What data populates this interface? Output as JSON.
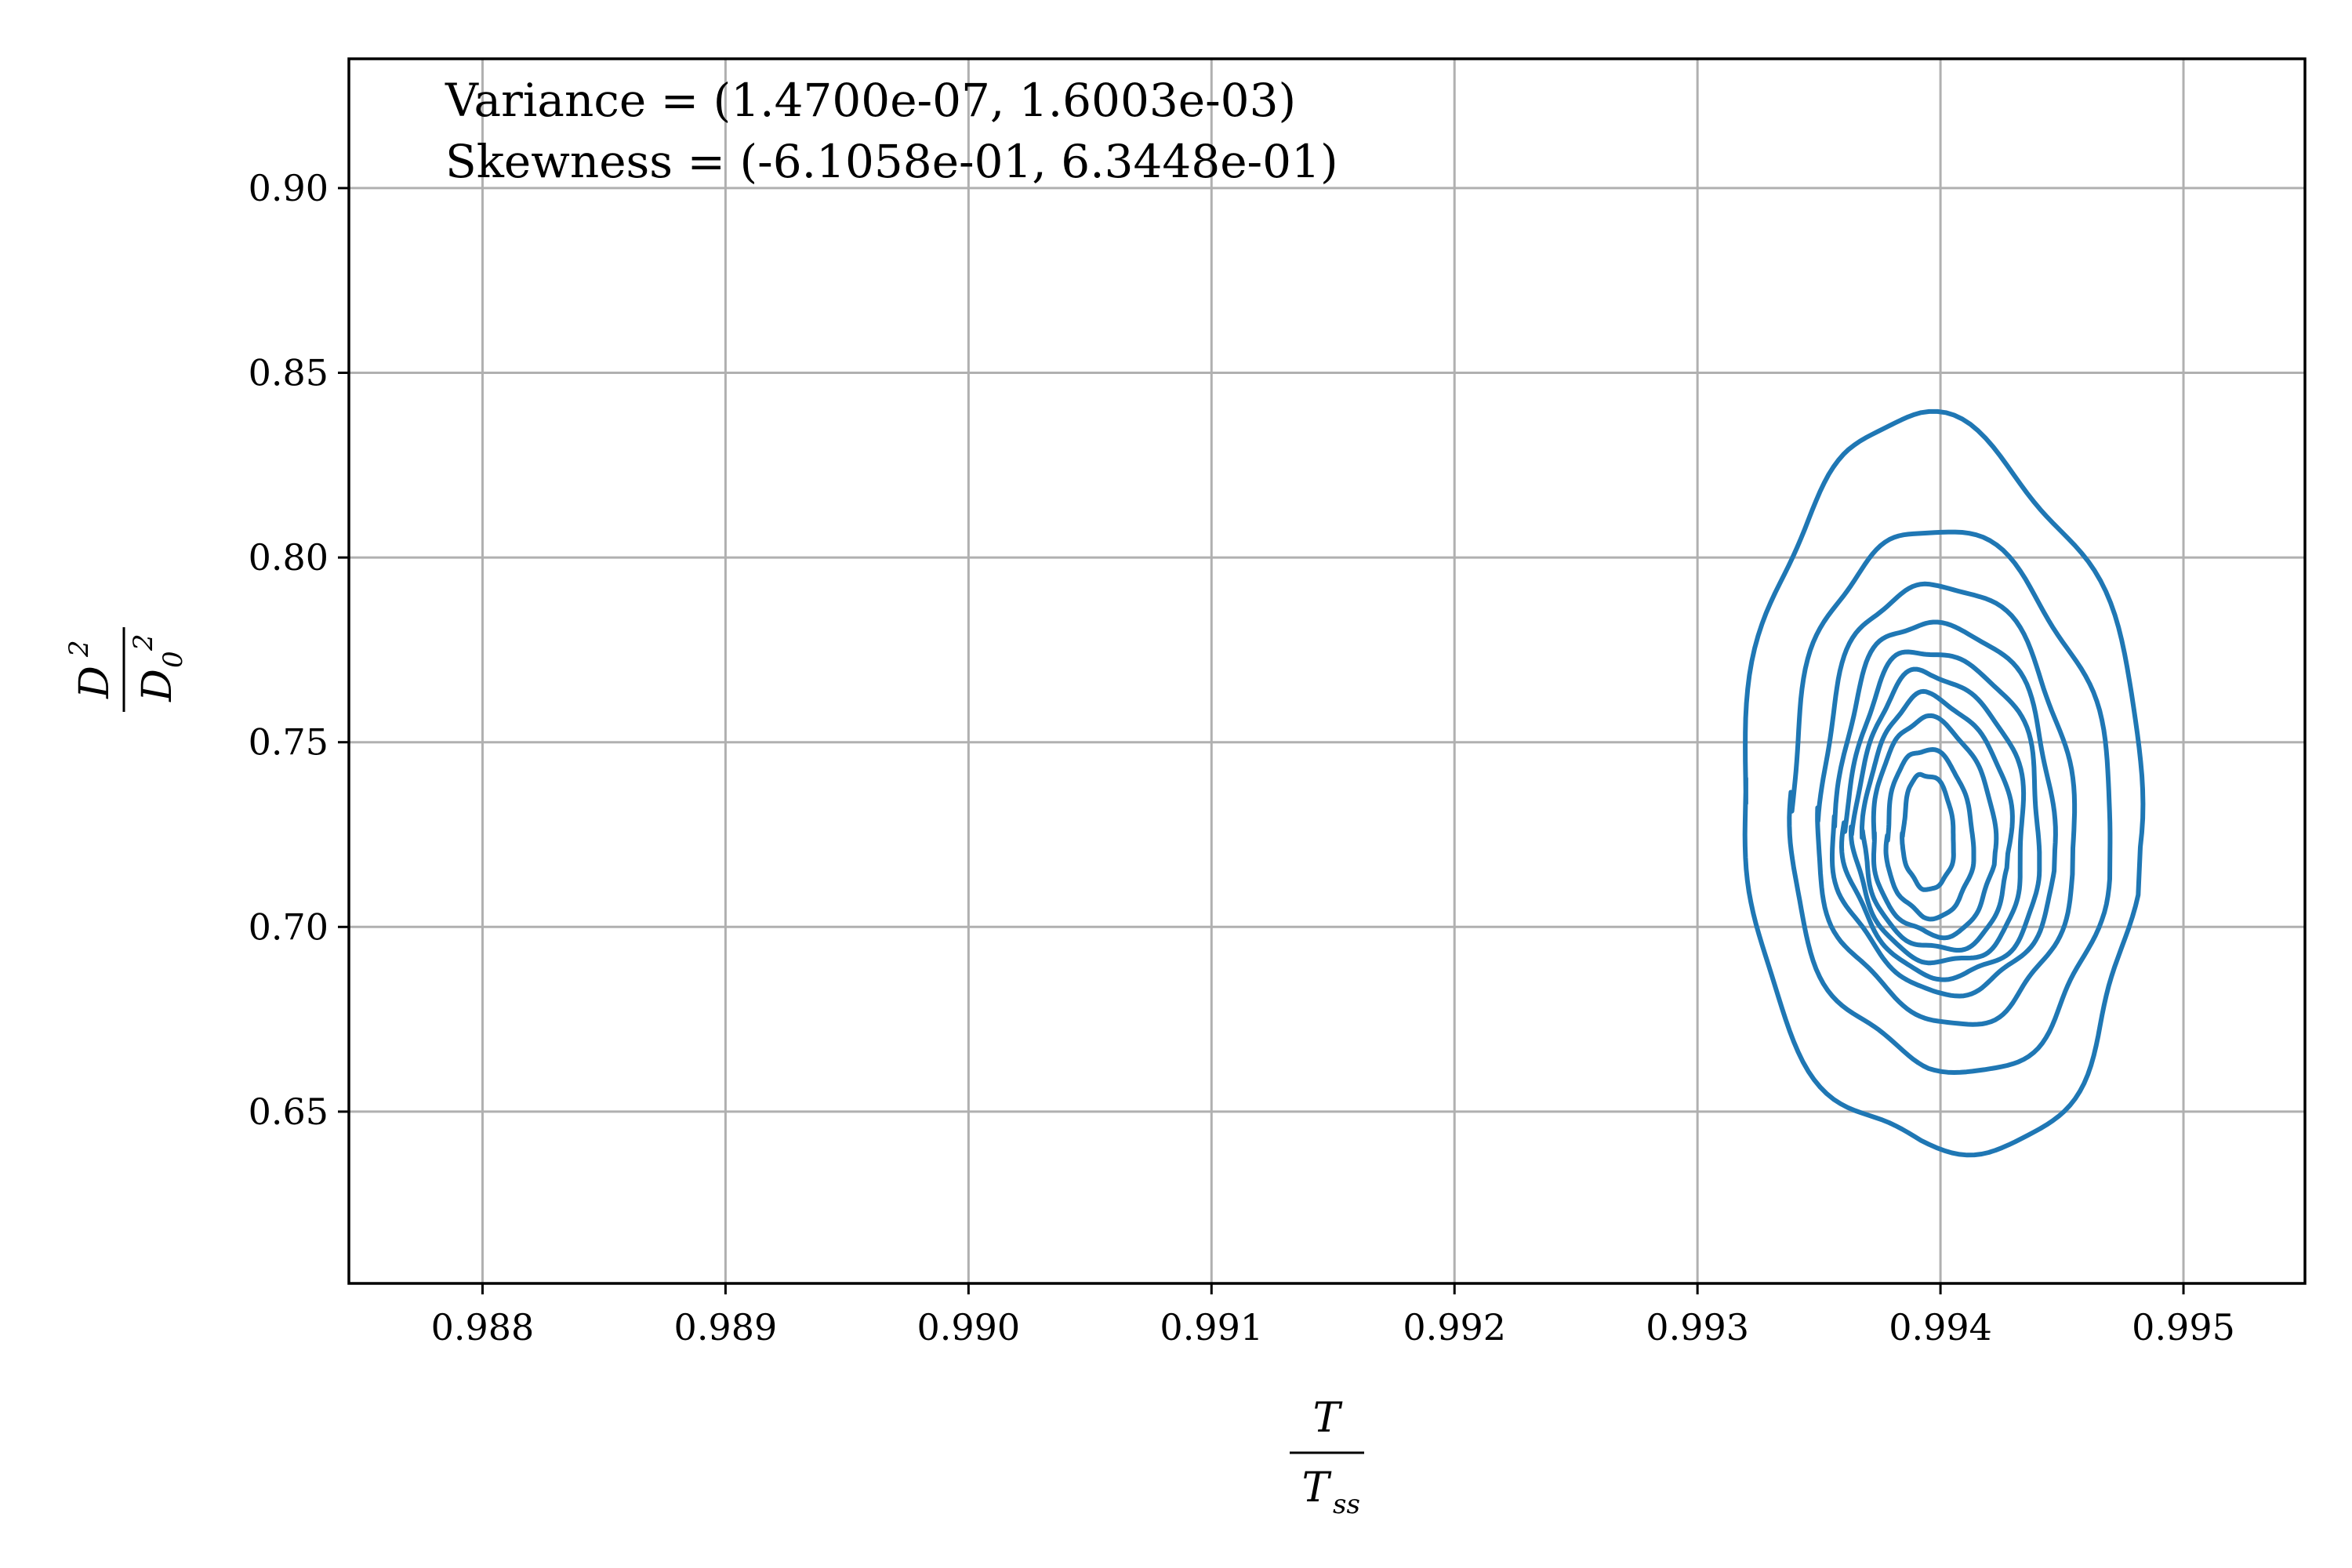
{
  "chart_data": {
    "type": "contour",
    "title": "",
    "xlabel": {
      "numerator": "T",
      "denominator": "T",
      "denominator_sub": "ss"
    },
    "ylabel": {
      "numerator": "D",
      "numerator_sup": "2",
      "denominator": "D",
      "denominator_sub": "0",
      "denominator_sup": "2"
    },
    "xlim": [
      0.98745,
      0.9955
    ],
    "ylim": [
      0.6035,
      0.935
    ],
    "x_ticks": [
      0.988,
      0.989,
      0.99,
      0.991,
      0.992,
      0.993,
      0.994,
      0.995
    ],
    "x_tick_labels": [
      "0.988",
      "0.989",
      "0.990",
      "0.991",
      "0.992",
      "0.993",
      "0.994",
      "0.995"
    ],
    "y_ticks": [
      0.65,
      0.7,
      0.75,
      0.8,
      0.85,
      0.9
    ],
    "y_tick_labels": [
      "0.65",
      "0.70",
      "0.75",
      "0.80",
      "0.85",
      "0.90"
    ],
    "grid": true,
    "annotations": [
      "Variance = (1.4700e-07, 1.6003e-03)",
      "Skewness = (-6.1058e-01, 6.3448e-01)"
    ],
    "series_color": "#1f77b4",
    "contour_levels": [
      {
        "level": 1,
        "cx": 0.99392,
        "cy": 0.7275,
        "rx_left": 0.00077,
        "rx_right": 0.00093,
        "ry_top": 0.109,
        "ry_bottom": 0.0875
      },
      {
        "level": 2,
        "cx": 0.99395,
        "cy": 0.727,
        "rx_left": 0.0006,
        "rx_right": 0.00077,
        "ry_top": 0.08,
        "ry_bottom": 0.065
      },
      {
        "level": 3,
        "cx": 0.99397,
        "cy": 0.725,
        "rx_left": 0.0005,
        "rx_right": 0.0006,
        "ry_top": 0.068,
        "ry_bottom": 0.05
      },
      {
        "level": 4,
        "cx": 0.99397,
        "cy": 0.724,
        "rx_left": 0.00043,
        "rx_right": 0.00052,
        "ry_top": 0.059,
        "ry_bottom": 0.041
      },
      {
        "level": 5,
        "cx": 0.99397,
        "cy": 0.723,
        "rx_left": 0.00038,
        "rx_right": 0.00046,
        "ry_top": 0.052,
        "ry_bottom": 0.036
      },
      {
        "level": 6,
        "cx": 0.99396,
        "cy": 0.7225,
        "rx_left": 0.00033,
        "rx_right": 0.0004,
        "ry_top": 0.046,
        "ry_bottom": 0.032
      },
      {
        "level": 7,
        "cx": 0.99395,
        "cy": 0.722,
        "rx_left": 0.00028,
        "rx_right": 0.00035,
        "ry_top": 0.04,
        "ry_bottom": 0.028
      },
      {
        "level": 8,
        "cx": 0.99394,
        "cy": 0.722,
        "rx_left": 0.00023,
        "rx_right": 0.00029,
        "ry_top": 0.034,
        "ry_bottom": 0.024
      },
      {
        "level": 9,
        "cx": 0.99393,
        "cy": 0.722,
        "rx_left": 0.00016,
        "rx_right": 0.00021,
        "ry_top": 0.026,
        "ry_bottom": 0.019
      },
      {
        "level": 10,
        "cx": 0.99393,
        "cy": 0.7235,
        "rx_left": 9e-05,
        "rx_right": 0.00013,
        "ry_top": 0.018,
        "ry_bottom": 0.013
      }
    ]
  }
}
